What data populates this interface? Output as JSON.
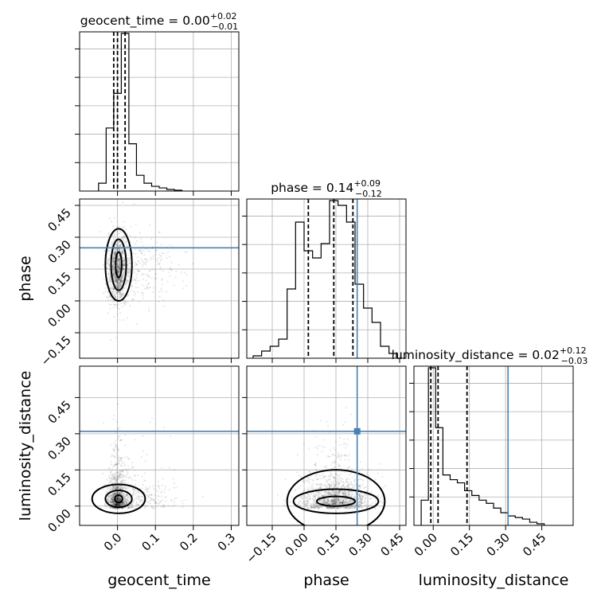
{
  "chart_data": {
    "type": "corner",
    "parameters": [
      "geocent_time",
      "phase",
      "luminosity_distance"
    ],
    "truths": {
      "geocent_time": null,
      "phase": 0.25,
      "luminosity_distance": 0.31
    },
    "marginals": [
      {
        "parameter": "geocent_time",
        "title": {
          "main": "geocent_time = 0.00",
          "sup": "+0.02",
          "sub": "−0.01"
        },
        "quantiles": [
          -0.01,
          0.0,
          0.02
        ],
        "xlim": [
          -0.1,
          0.32
        ],
        "bins": [
          -0.05,
          -0.03,
          -0.01,
          0.01,
          0.03,
          0.05,
          0.07,
          0.09,
          0.11,
          0.13,
          0.15,
          0.17
        ],
        "counts": [
          0.05,
          0.4,
          0.62,
          1.0,
          0.3,
          0.1,
          0.05,
          0.03,
          0.02,
          0.01,
          0.005
        ]
      },
      {
        "parameter": "phase",
        "title": {
          "main": "phase = 0.14",
          "sup": "+0.09",
          "sub": "−0.12"
        },
        "quantiles": [
          0.02,
          0.14,
          0.23
        ],
        "xlim": [
          -0.27,
          0.48
        ],
        "bins": [
          -0.24,
          -0.2,
          -0.16,
          -0.12,
          -0.08,
          -0.04,
          0.0,
          0.04,
          0.08,
          0.12,
          0.16,
          0.2,
          0.24,
          0.28,
          0.32,
          0.36,
          0.4,
          0.44
        ],
        "counts": [
          0.01,
          0.03,
          0.05,
          0.08,
          0.29,
          0.57,
          0.45,
          0.42,
          0.48,
          0.66,
          0.64,
          0.57,
          0.31,
          0.21,
          0.15,
          0.05,
          0.02
        ]
      },
      {
        "parameter": "luminosity_distance",
        "title": {
          "main": "luminosity_distance = 0.02",
          "sup": "+0.12",
          "sub": "−0.03"
        },
        "quantiles": [
          -0.01,
          0.02,
          0.14
        ],
        "xlim": [
          -0.08,
          0.58
        ],
        "bins": [
          -0.05,
          -0.02,
          0.01,
          0.04,
          0.07,
          0.1,
          0.13,
          0.16,
          0.19,
          0.22,
          0.25,
          0.28,
          0.31,
          0.34,
          0.37,
          0.4,
          0.43,
          0.46
        ],
        "counts": [
          0.16,
          1.0,
          0.62,
          0.32,
          0.29,
          0.27,
          0.22,
          0.19,
          0.16,
          0.14,
          0.11,
          0.08,
          0.06,
          0.05,
          0.04,
          0.02,
          0.01
        ]
      }
    ],
    "ticks": {
      "geocent_time": {
        "values": [
          0.0,
          0.1,
          0.2,
          0.3
        ],
        "labels": [
          "0.0",
          "0.1",
          "0.2",
          "0.3"
        ]
      },
      "phase": {
        "values": [
          -0.15,
          0.0,
          0.15,
          0.3,
          0.45
        ],
        "labels": [
          "−0.15",
          "0.00",
          "0.15",
          "0.30",
          "0.45"
        ]
      },
      "luminosity_distance": {
        "values": [
          0.0,
          0.15,
          0.3,
          0.45
        ],
        "labels": [
          "0.00",
          "0.15",
          "0.30",
          "0.45"
        ]
      }
    },
    "ylims": {
      "phase": [
        -0.27,
        0.48
      ],
      "luminosity_distance": [
        -0.08,
        0.58
      ]
    },
    "grid": true
  }
}
